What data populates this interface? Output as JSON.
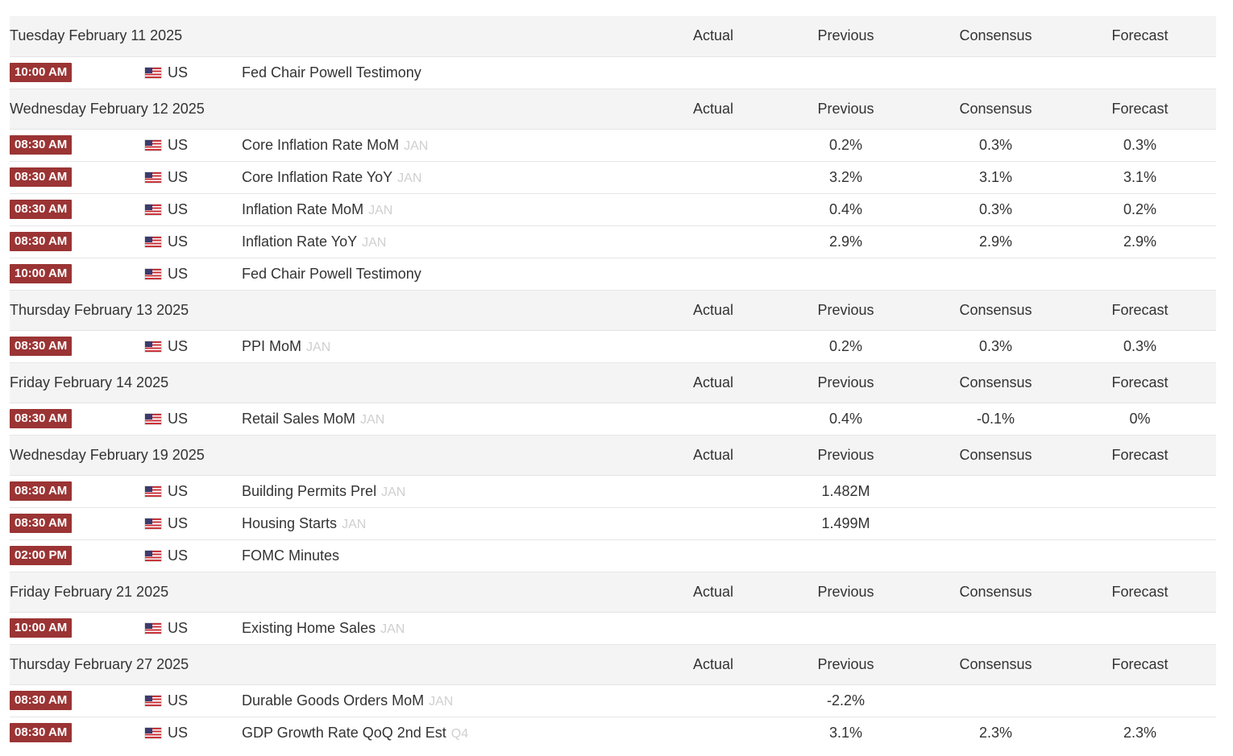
{
  "columns": {
    "actual": "Actual",
    "previous": "Previous",
    "consensus": "Consensus",
    "forecast": "Forecast"
  },
  "colors": {
    "time_badge": "#9b3434",
    "positive": "#1f7a1f",
    "negative": "#8a1c1c",
    "reference": "#cfcfcf",
    "header_bg": "#f4f4f4"
  },
  "days": [
    {
      "date": "Tuesday February 11 2025",
      "events": [
        {
          "time": "10:00 AM",
          "country": "US",
          "flag_icon": "us-flag-icon",
          "event": "Fed Chair Powell Testimony",
          "reference": "",
          "actual": "",
          "previous": "",
          "previous_tone": "",
          "consensus": "",
          "forecast": ""
        }
      ]
    },
    {
      "date": "Wednesday February 12 2025",
      "events": [
        {
          "time": "08:30 AM",
          "country": "US",
          "flag_icon": "us-flag-icon",
          "event": "Core Inflation Rate MoM",
          "reference": "JAN",
          "actual": "",
          "previous": "0.2%",
          "previous_tone": "pos",
          "consensus": "0.3%",
          "forecast": "0.3%"
        },
        {
          "time": "08:30 AM",
          "country": "US",
          "flag_icon": "us-flag-icon",
          "event": "Core Inflation Rate YoY",
          "reference": "JAN",
          "actual": "",
          "previous": "3.2%",
          "previous_tone": "pos",
          "consensus": "3.1%",
          "forecast": "3.1%"
        },
        {
          "time": "08:30 AM",
          "country": "US",
          "flag_icon": "us-flag-icon",
          "event": "Inflation Rate MoM",
          "reference": "JAN",
          "actual": "",
          "previous": "0.4%",
          "previous_tone": "pos",
          "consensus": "0.3%",
          "forecast": "0.2%"
        },
        {
          "time": "08:30 AM",
          "country": "US",
          "flag_icon": "us-flag-icon",
          "event": "Inflation Rate YoY",
          "reference": "JAN",
          "actual": "",
          "previous": "2.9%",
          "previous_tone": "pos",
          "consensus": "2.9%",
          "forecast": "2.9%"
        },
        {
          "time": "10:00 AM",
          "country": "US",
          "flag_icon": "us-flag-icon",
          "event": "Fed Chair Powell Testimony",
          "reference": "",
          "actual": "",
          "previous": "",
          "previous_tone": "",
          "consensus": "",
          "forecast": ""
        }
      ]
    },
    {
      "date": "Thursday February 13 2025",
      "events": [
        {
          "time": "08:30 AM",
          "country": "US",
          "flag_icon": "us-flag-icon",
          "event": "PPI MoM",
          "reference": "JAN",
          "actual": "",
          "previous": "0.2%",
          "previous_tone": "pos",
          "consensus": "0.3%",
          "forecast": "0.3%"
        }
      ]
    },
    {
      "date": "Friday February 14 2025",
      "events": [
        {
          "time": "08:30 AM",
          "country": "US",
          "flag_icon": "us-flag-icon",
          "event": "Retail Sales MoM",
          "reference": "JAN",
          "actual": "",
          "previous": "0.4%",
          "previous_tone": "pos",
          "consensus": "-0.1%",
          "forecast": "0%"
        }
      ]
    },
    {
      "date": "Wednesday February 19 2025",
      "events": [
        {
          "time": "08:30 AM",
          "country": "US",
          "flag_icon": "us-flag-icon",
          "event": "Building Permits Prel",
          "reference": "JAN",
          "actual": "",
          "previous": "1.482M",
          "previous_tone": "pos",
          "consensus": "",
          "forecast": ""
        },
        {
          "time": "08:30 AM",
          "country": "US",
          "flag_icon": "us-flag-icon",
          "event": "Housing Starts",
          "reference": "JAN",
          "actual": "",
          "previous": "1.499M",
          "previous_tone": "pos",
          "consensus": "",
          "forecast": ""
        },
        {
          "time": "02:00 PM",
          "country": "US",
          "flag_icon": "us-flag-icon",
          "event": "FOMC Minutes",
          "reference": "",
          "actual": "",
          "previous": "",
          "previous_tone": "",
          "consensus": "",
          "forecast": ""
        }
      ]
    },
    {
      "date": "Friday February 21 2025",
      "events": [
        {
          "time": "10:00 AM",
          "country": "US",
          "flag_icon": "us-flag-icon",
          "event": "Existing Home Sales",
          "reference": "JAN",
          "actual": "",
          "previous": "",
          "previous_tone": "",
          "consensus": "",
          "forecast": ""
        }
      ]
    },
    {
      "date": "Thursday February 27 2025",
      "events": [
        {
          "time": "08:30 AM",
          "country": "US",
          "flag_icon": "us-flag-icon",
          "event": "Durable Goods Orders MoM",
          "reference": "JAN",
          "actual": "",
          "previous": "-2.2%",
          "previous_tone": "neg",
          "consensus": "",
          "forecast": ""
        },
        {
          "time": "08:30 AM",
          "country": "US",
          "flag_icon": "us-flag-icon",
          "event": "GDP Growth Rate QoQ 2nd Est",
          "reference": "Q4",
          "actual": "",
          "previous": "3.1%",
          "previous_tone": "pos",
          "consensus": "2.3%",
          "forecast": "2.3%"
        }
      ]
    }
  ]
}
